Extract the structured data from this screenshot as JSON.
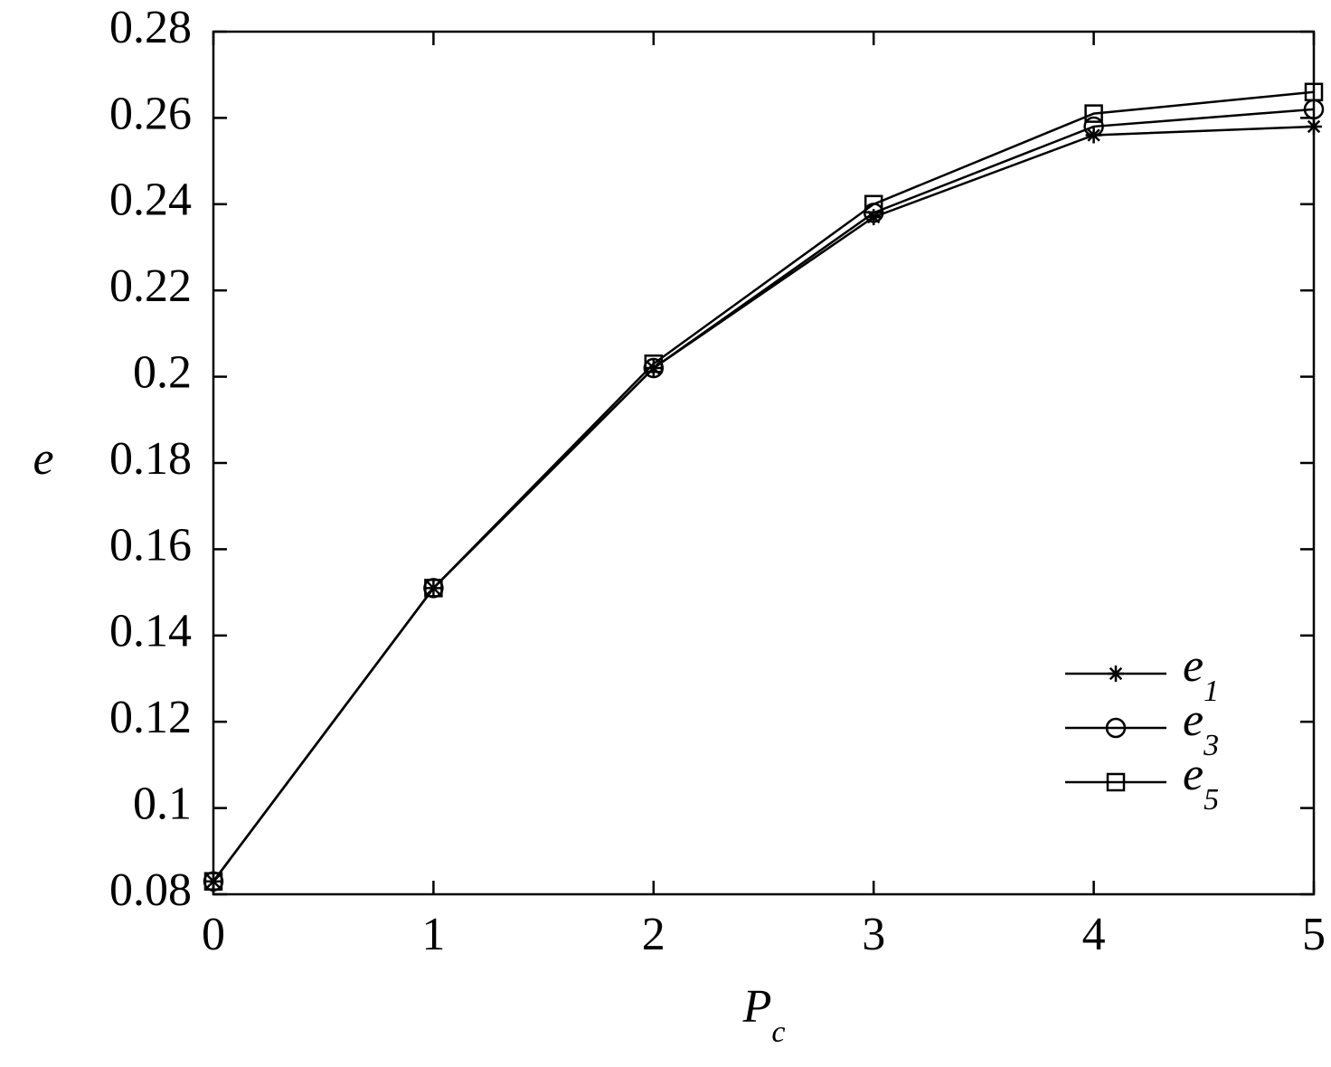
{
  "chart_data": {
    "type": "line",
    "x_label": "Pc",
    "y_label": "e",
    "x": [
      0,
      1,
      2,
      3,
      4,
      5
    ],
    "series": [
      {
        "name": "e1",
        "color": "#000000",
        "marker": "asterisk",
        "values": [
          0.083,
          0.151,
          0.202,
          0.237,
          0.256,
          0.258
        ]
      },
      {
        "name": "e3",
        "color": "#000000",
        "marker": "circle",
        "values": [
          0.083,
          0.151,
          0.202,
          0.238,
          0.258,
          0.262
        ]
      },
      {
        "name": "e5",
        "color": "#000000",
        "marker": "square",
        "values": [
          0.083,
          0.151,
          0.203,
          0.24,
          0.261,
          0.266
        ]
      }
    ],
    "xlim": [
      0,
      5
    ],
    "xticks": [
      0,
      1,
      2,
      3,
      4,
      5
    ],
    "ylim": [
      0.08,
      0.28
    ],
    "yticks": [
      0.08,
      0.1,
      0.12,
      0.14,
      0.16,
      0.18,
      0.2,
      0.22,
      0.24,
      0.26,
      0.28
    ],
    "grid": false,
    "legend": "lower right"
  }
}
